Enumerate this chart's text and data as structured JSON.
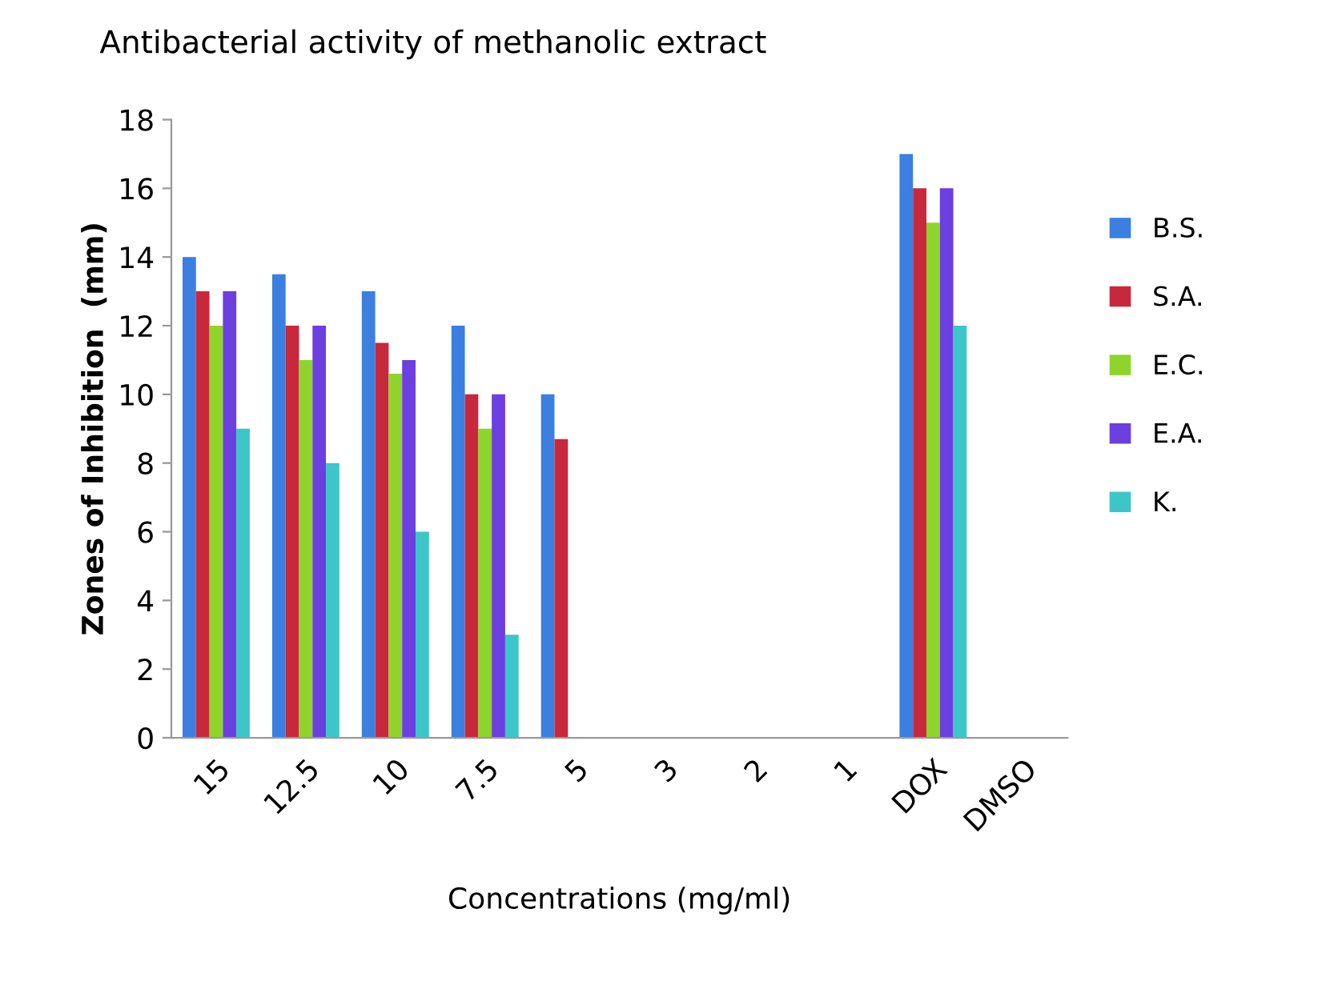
{
  "chart_data": {
    "type": "bar",
    "title": "Antibacterial activity of methanolic extract",
    "xlabel": "Concentrations (mg/ml)",
    "ylabel": "Zones of Inhibition  (mm)",
    "categories": [
      "15",
      "12.5",
      "10",
      "7.5",
      "5",
      "3",
      "2",
      "1",
      "DOX",
      "DMSO"
    ],
    "series": [
      {
        "name": "B.S.",
        "color": "#3b7fe0",
        "values": [
          14,
          13.5,
          13,
          12,
          10,
          null,
          null,
          null,
          17,
          null
        ]
      },
      {
        "name": "S.A.",
        "color": "#c8283c",
        "values": [
          13,
          12,
          11.5,
          10,
          8.7,
          null,
          null,
          null,
          16,
          null
        ]
      },
      {
        "name": "E.C.",
        "color": "#8fd42a",
        "values": [
          12,
          11,
          10.6,
          9,
          null,
          null,
          null,
          null,
          15,
          null
        ]
      },
      {
        "name": "E.A.",
        "color": "#6b3fe0",
        "values": [
          13,
          12,
          11,
          10,
          null,
          null,
          null,
          null,
          16,
          null
        ]
      },
      {
        "name": "K.",
        "color": "#3cc6c8",
        "values": [
          9,
          8,
          6,
          3,
          null,
          null,
          null,
          null,
          12,
          null
        ]
      }
    ],
    "ylim": [
      0,
      18
    ],
    "yticks": [
      0,
      2,
      4,
      6,
      8,
      10,
      12,
      14,
      16,
      18
    ],
    "grid": false,
    "legend": "right"
  }
}
